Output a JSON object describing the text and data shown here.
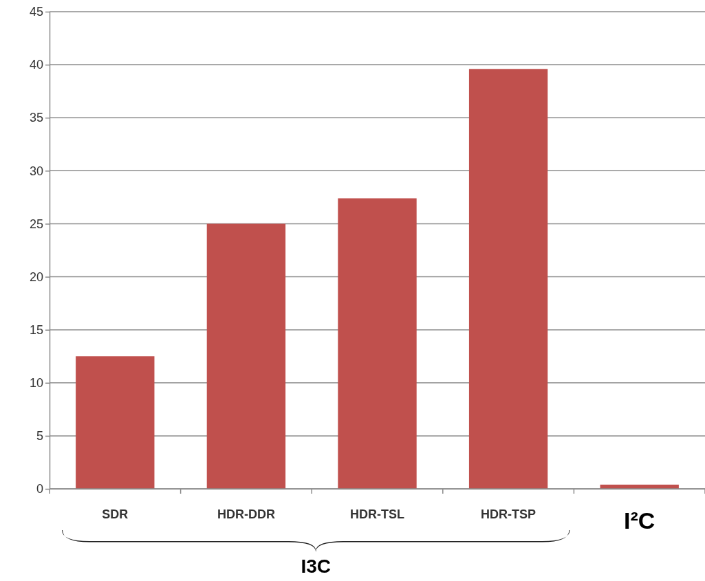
{
  "chart_data": {
    "type": "bar",
    "categories": [
      "SDR",
      "HDR-DDR",
      "HDR-TSL",
      "HDR-TSP",
      "I²C"
    ],
    "values": [
      12.5,
      25.0,
      27.4,
      39.6,
      0.4
    ],
    "color": "#c0504d",
    "ylim": [
      0,
      45
    ],
    "yticks": [
      0,
      5,
      10,
      15,
      20,
      25,
      30,
      35,
      40,
      45
    ],
    "grid": "y",
    "annotations": [
      "I3C"
    ]
  }
}
